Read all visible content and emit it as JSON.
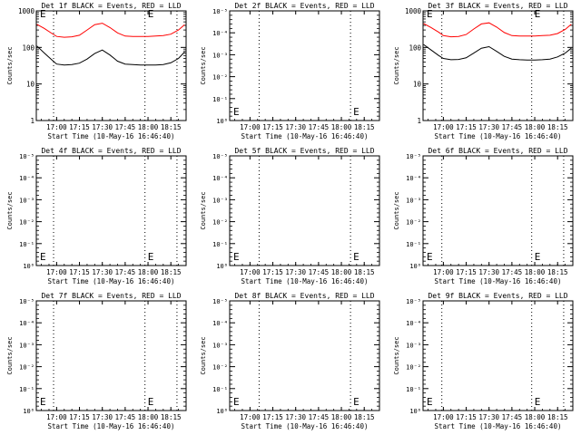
{
  "chart_data": [
    {
      "type": "line",
      "title": "Det 1f BLACK = Events, RED = LLD",
      "xlabel": "Start Time (10-May-16 16:46:40)",
      "ylabel": "Counts/sec",
      "scale": "log",
      "ylim": [
        1,
        1000
      ],
      "y_ticks": [
        "1",
        "10",
        "100",
        "1000"
      ],
      "x_ticks": [
        "17:00",
        "17:15",
        "17:30",
        "17:45",
        "18:00",
        "18:15"
      ],
      "x_domain": [
        "16:46:40",
        "18:25"
      ],
      "vlines": [
        "16:58",
        "17:58",
        "18:19"
      ],
      "marker": "E",
      "series": [
        {
          "color": "#ff0000",
          "x": [
            "16:47",
            "16:52",
            "16:57",
            "17:00",
            "17:05",
            "17:10",
            "17:15",
            "17:20",
            "17:25",
            "17:30",
            "17:35",
            "17:40",
            "17:45",
            "17:50",
            "17:55",
            "18:00",
            "18:05",
            "18:10",
            "18:15",
            "18:20",
            "18:24"
          ],
          "values": [
            430,
            330,
            240,
            200,
            190,
            195,
            215,
            300,
            420,
            460,
            350,
            250,
            205,
            200,
            200,
            200,
            205,
            210,
            230,
            300,
            420
          ]
        },
        {
          "color": "#000000",
          "x": [
            "16:47",
            "16:52",
            "16:57",
            "17:00",
            "17:05",
            "17:10",
            "17:15",
            "17:20",
            "17:25",
            "17:30",
            "17:35",
            "17:40",
            "17:45",
            "17:50",
            "17:55",
            "18:00",
            "18:05",
            "18:10",
            "18:15",
            "18:20",
            "18:24"
          ],
          "values": [
            110,
            70,
            45,
            35,
            33,
            34,
            37,
            48,
            68,
            85,
            62,
            42,
            35,
            34,
            33,
            33,
            33,
            34,
            38,
            50,
            75
          ]
        }
      ]
    },
    {
      "type": "line",
      "title": "Det 2f BLACK = Events, RED = LLD",
      "xlabel": "Start Time (10-May-16 16:46:40)",
      "ylabel": "Counts/sec",
      "scale": "linear-sci",
      "y_ticks": [
        "10⁰",
        "10⁻¹",
        "10⁻²",
        "10⁻³",
        "10⁻⁴",
        "10⁻⁵"
      ],
      "x_ticks": [
        "17:00",
        "17:15",
        "17:30",
        "17:45",
        "18:00",
        "18:15"
      ],
      "x_domain": [
        "16:46:40",
        "18:25"
      ],
      "vlines": [
        "17:06",
        "18:06"
      ],
      "marker": "E",
      "series": []
    },
    {
      "type": "line",
      "title": "Det 3f BLACK = Events, RED = LLD",
      "xlabel": "Start Time (10-May-16 16:46:40)",
      "ylabel": "Counts/sec",
      "scale": "log",
      "ylim": [
        1,
        1000
      ],
      "y_ticks": [
        "1",
        "10",
        "100",
        "1000"
      ],
      "x_ticks": [
        "17:00",
        "17:15",
        "17:30",
        "17:45",
        "18:00",
        "18:15"
      ],
      "x_domain": [
        "16:46:40",
        "18:25"
      ],
      "vlines": [
        "16:59",
        "17:58",
        "18:19"
      ],
      "marker": "E",
      "series": [
        {
          "color": "#ff0000",
          "x": [
            "16:47",
            "16:52",
            "16:57",
            "17:00",
            "17:05",
            "17:10",
            "17:15",
            "17:20",
            "17:25",
            "17:30",
            "17:35",
            "17:40",
            "17:45",
            "17:50",
            "17:55",
            "18:00",
            "18:05",
            "18:10",
            "18:15",
            "18:20",
            "18:24"
          ],
          "values": [
            450,
            350,
            260,
            210,
            195,
            200,
            225,
            320,
            440,
            470,
            360,
            255,
            210,
            205,
            205,
            205,
            210,
            215,
            240,
            310,
            430
          ]
        },
        {
          "color": "#000000",
          "x": [
            "16:47",
            "16:52",
            "16:57",
            "17:00",
            "17:05",
            "17:10",
            "17:15",
            "17:20",
            "17:25",
            "17:30",
            "17:35",
            "17:40",
            "17:45",
            "17:50",
            "17:55",
            "18:00",
            "18:05",
            "18:10",
            "18:15",
            "18:20",
            "18:24"
          ],
          "values": [
            120,
            85,
            60,
            50,
            46,
            47,
            52,
            70,
            95,
            105,
            78,
            57,
            48,
            46,
            45,
            45,
            46,
            48,
            55,
            70,
            95
          ]
        }
      ]
    },
    {
      "type": "line",
      "title": "Det 4f BLACK = Events, RED = LLD",
      "xlabel": "Start Time (10-May-16 16:46:40)",
      "ylabel": "Counts/sec",
      "scale": "linear-sci",
      "y_ticks": [
        "10⁰",
        "10⁻¹",
        "10⁻²",
        "10⁻³",
        "10⁻⁴",
        "10⁻⁵"
      ],
      "x_ticks": [
        "17:00",
        "17:15",
        "17:30",
        "17:45",
        "18:00",
        "18:15"
      ],
      "x_domain": [
        "16:46:40",
        "18:25"
      ],
      "vlines": [
        "16:58",
        "17:58",
        "18:19"
      ],
      "marker": "E",
      "series": []
    },
    {
      "type": "line",
      "title": "Det 5f BLACK = Events, RED = LLD",
      "xlabel": "Start Time (10-May-16 16:46:40)",
      "ylabel": "Counts/sec",
      "scale": "linear-sci",
      "y_ticks": [
        "10⁰",
        "10⁻¹",
        "10⁻²",
        "10⁻³",
        "10⁻⁴",
        "10⁻⁵"
      ],
      "x_ticks": [
        "17:00",
        "17:15",
        "17:30",
        "17:45",
        "18:00",
        "18:15"
      ],
      "x_domain": [
        "16:46:40",
        "18:25"
      ],
      "vlines": [
        "17:06",
        "18:06"
      ],
      "marker": "E",
      "series": []
    },
    {
      "type": "line",
      "title": "Det 6f BLACK = Events, RED = LLD",
      "xlabel": "Start Time (10-May-16 16:46:40)",
      "ylabel": "Counts/sec",
      "scale": "linear-sci",
      "y_ticks": [
        "10⁰",
        "10⁻¹",
        "10⁻²",
        "10⁻³",
        "10⁻⁴",
        "10⁻⁵"
      ],
      "x_ticks": [
        "17:00",
        "17:15",
        "17:30",
        "17:45",
        "18:00",
        "18:15"
      ],
      "x_domain": [
        "16:46:40",
        "18:25"
      ],
      "vlines": [
        "16:59",
        "17:58",
        "18:19"
      ],
      "marker": "E",
      "series": []
    },
    {
      "type": "line",
      "title": "Det 7f BLACK = Events, RED = LLD",
      "xlabel": "Start Time (10-May-16 16:46:40)",
      "ylabel": "Counts/sec",
      "scale": "linear-sci",
      "y_ticks": [
        "10⁰",
        "10⁻¹",
        "10⁻²",
        "10⁻³",
        "10⁻⁴",
        "10⁻⁵"
      ],
      "x_ticks": [
        "17:00",
        "17:15",
        "17:30",
        "17:45",
        "18:00",
        "18:15"
      ],
      "x_domain": [
        "16:46:40",
        "18:25"
      ],
      "vlines": [
        "16:58",
        "17:58",
        "18:19"
      ],
      "marker": "E",
      "series": []
    },
    {
      "type": "line",
      "title": "Det 8f BLACK = Events, RED = LLD",
      "xlabel": "Start Time (10-May-16 16:46:40)",
      "ylabel": "Counts/sec",
      "scale": "linear-sci",
      "y_ticks": [
        "10⁰",
        "10⁻¹",
        "10⁻²",
        "10⁻³",
        "10⁻⁴",
        "10⁻⁵"
      ],
      "x_ticks": [
        "17:00",
        "17:15",
        "17:30",
        "17:45",
        "18:00",
        "18:15"
      ],
      "x_domain": [
        "16:46:40",
        "18:25"
      ],
      "vlines": [
        "17:06",
        "18:06"
      ],
      "marker": "E",
      "series": []
    },
    {
      "type": "line",
      "title": "Det 9f BLACK = Events, RED = LLD",
      "xlabel": "Start Time (10-May-16 16:46:40)",
      "ylabel": "Counts/sec",
      "scale": "linear-sci",
      "y_ticks": [
        "10⁰",
        "10⁻¹",
        "10⁻²",
        "10⁻³",
        "10⁻⁴",
        "10⁻⁵"
      ],
      "x_ticks": [
        "17:00",
        "17:15",
        "17:30",
        "17:45",
        "18:00",
        "18:15"
      ],
      "x_domain": [
        "16:46:40",
        "18:25"
      ],
      "vlines": [
        "16:59",
        "17:58",
        "18:19"
      ],
      "marker": "E",
      "series": []
    }
  ]
}
